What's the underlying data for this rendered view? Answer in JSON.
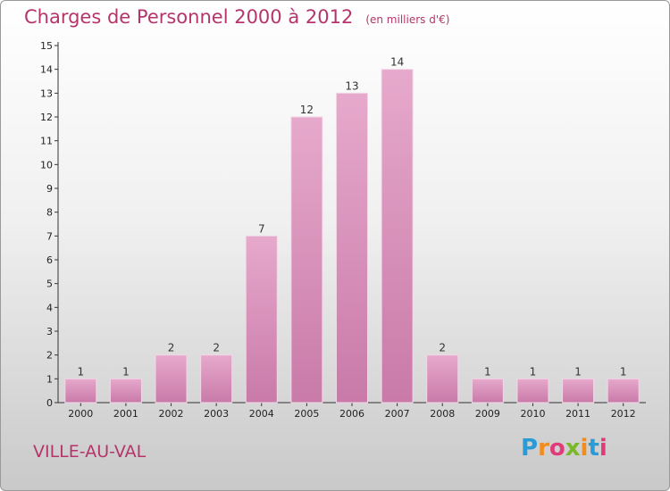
{
  "page": {
    "title": "Charges de Personnel 2000 à 2012",
    "subtitle": "(en milliers d'€)",
    "place": "VILLE-AU-VAL",
    "logo": [
      "P",
      "r",
      "o",
      "x",
      "i",
      "t",
      "i"
    ],
    "logo_colors": [
      "#2a9bd6",
      "#f28c1c",
      "#e03a7a",
      "#7ab829",
      "#f28c1c",
      "#2a9bd6",
      "#e03a7a"
    ],
    "bar_color": "#c97aa8",
    "bar_highlight": "#e6a9cc"
  },
  "chart_data": {
    "type": "bar",
    "title": "Charges de Personnel 2000 à 2012",
    "subtitle": "(en milliers d'€)",
    "categories": [
      "2000",
      "2001",
      "2002",
      "2003",
      "2004",
      "2005",
      "2006",
      "2007",
      "2008",
      "2009",
      "2010",
      "2011",
      "2012"
    ],
    "values": [
      1,
      1,
      2,
      2,
      7,
      12,
      13,
      14,
      2,
      1,
      1,
      1,
      1
    ],
    "ylim": [
      0,
      15
    ],
    "yticks": [
      0,
      1,
      2,
      3,
      4,
      5,
      6,
      7,
      8,
      9,
      10,
      11,
      12,
      13,
      14,
      15
    ],
    "grid": false,
    "data_labels": true
  }
}
